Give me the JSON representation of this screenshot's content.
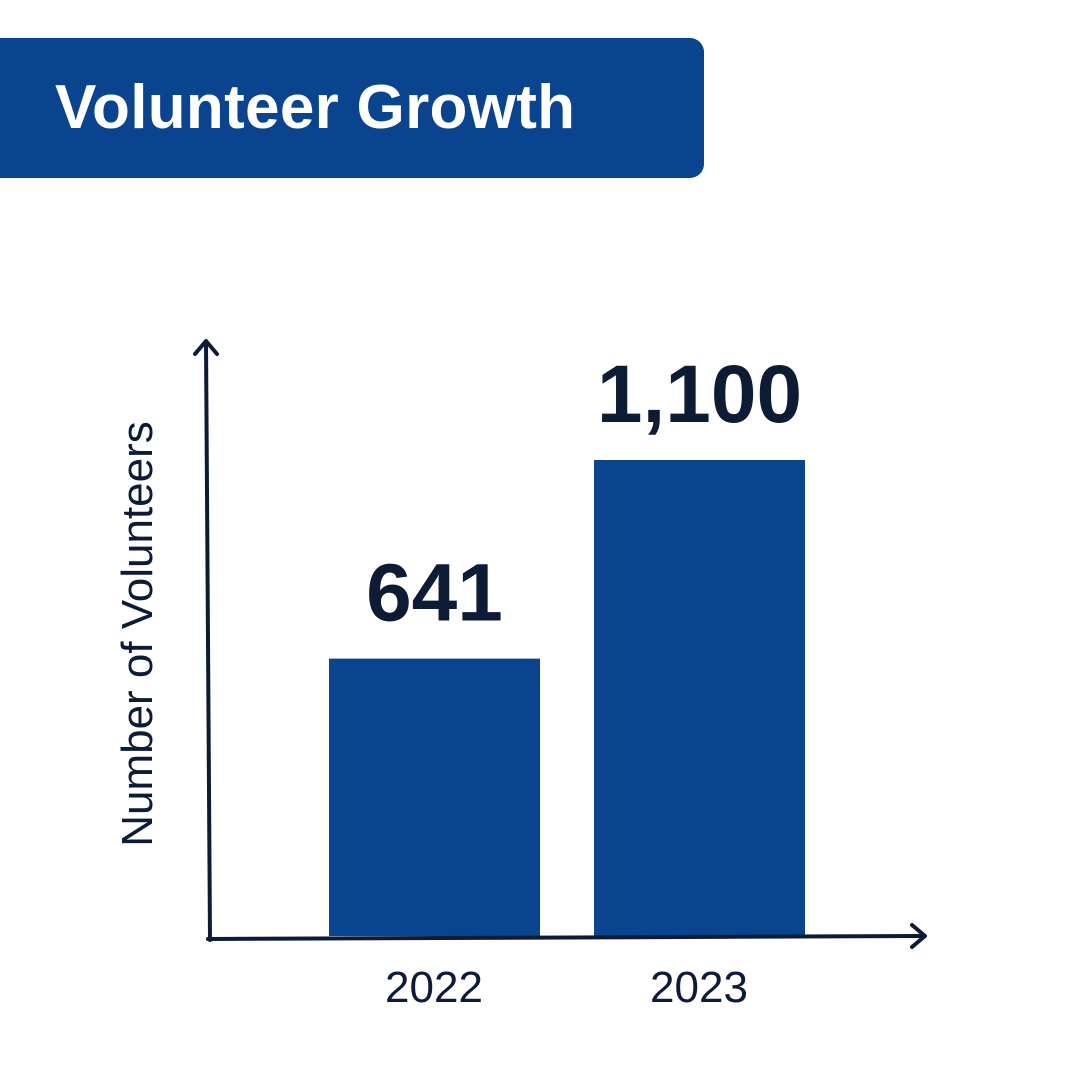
{
  "title": "Volunteer Growth",
  "colors": {
    "banner": "#0a448f",
    "bar": "#0a448f",
    "axis": "#0d1b35",
    "text": "#0d1b35"
  },
  "chart_data": {
    "type": "bar",
    "title": "Volunteer Growth",
    "xlabel": "",
    "ylabel": "Number of Volunteers",
    "categories": [
      "2022",
      "2023"
    ],
    "values": [
      641,
      1100
    ],
    "data_labels": [
      "641",
      "1,100"
    ],
    "grid": false,
    "legend": "none"
  }
}
